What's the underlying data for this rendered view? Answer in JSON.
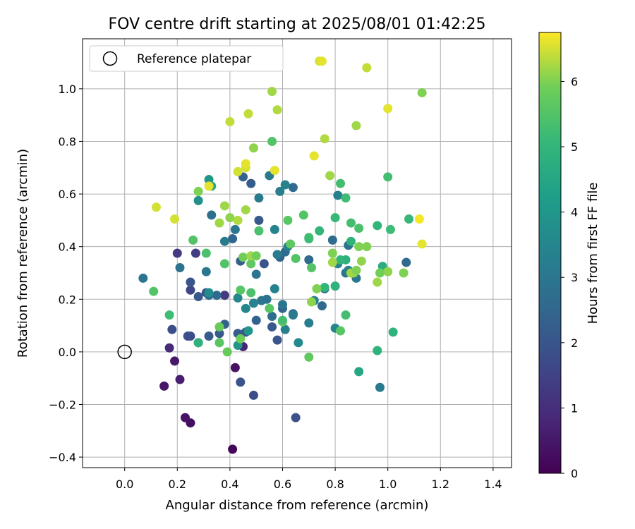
{
  "chart_data": {
    "type": "scatter",
    "title": "FOV centre drift starting at 2025/08/01 01:42:25",
    "xlabel": "Angular distance from reference (arcmin)",
    "ylabel": "Rotation from reference (arcmin)",
    "xlim": [
      -0.16,
      1.47
    ],
    "ylim": [
      -0.44,
      1.19
    ],
    "x_ticks": [
      0.0,
      0.2,
      0.4,
      0.6,
      0.8,
      1.0,
      1.2,
      1.4
    ],
    "x_tick_labels": [
      "0.0",
      "0.2",
      "0.4",
      "0.6",
      "0.8",
      "1.0",
      "1.2",
      "1.4"
    ],
    "y_ticks": [
      -0.4,
      -0.2,
      0.0,
      0.2,
      0.4,
      0.6,
      0.8,
      1.0
    ],
    "y_tick_labels": [
      "−0.4",
      "−0.2",
      "0.0",
      "0.2",
      "0.4",
      "0.6",
      "0.8",
      "1.0"
    ],
    "grid": true,
    "legend": {
      "placement": "top-left",
      "entries": [
        "Reference platepar"
      ]
    },
    "reference_point": {
      "x": 0.0,
      "y": 0.0,
      "label": "Reference platepar"
    },
    "colorbar": {
      "label": "Hours from first FF file",
      "range": [
        0,
        6.75
      ],
      "ticks": [
        0,
        1,
        2,
        3,
        4,
        5,
        6
      ],
      "tick_labels": [
        "0",
        "1",
        "2",
        "3",
        "4",
        "5",
        "6"
      ],
      "colormap": "viridis"
    },
    "points": [
      {
        "x": 0.41,
        "y": -0.37,
        "t": 0.1
      },
      {
        "x": 0.25,
        "y": -0.27,
        "t": 0.3
      },
      {
        "x": 0.23,
        "y": -0.25,
        "t": 0.4
      },
      {
        "x": 0.15,
        "y": -0.13,
        "t": 0.5
      },
      {
        "x": 0.21,
        "y": -0.105,
        "t": 0.6
      },
      {
        "x": 0.19,
        "y": -0.035,
        "t": 0.5
      },
      {
        "x": 0.42,
        "y": -0.06,
        "t": 0.4
      },
      {
        "x": 0.17,
        "y": 0.015,
        "t": 0.9
      },
      {
        "x": 0.45,
        "y": 0.02,
        "t": 0.8
      },
      {
        "x": 0.28,
        "y": 0.035,
        "t": 1.0
      },
      {
        "x": 0.2,
        "y": 0.375,
        "t": 1.3
      },
      {
        "x": 0.27,
        "y": 0.375,
        "t": 1.4
      },
      {
        "x": 0.38,
        "y": 0.215,
        "t": 1.3
      },
      {
        "x": 0.25,
        "y": 0.235,
        "t": 1.6
      },
      {
        "x": 0.18,
        "y": 0.085,
        "t": 1.8
      },
      {
        "x": 0.44,
        "y": -0.115,
        "t": 1.9
      },
      {
        "x": 0.49,
        "y": -0.165,
        "t": 1.8
      },
      {
        "x": 0.65,
        "y": -0.25,
        "t": 1.9
      },
      {
        "x": 0.25,
        "y": 0.265,
        "t": 2.0
      },
      {
        "x": 0.24,
        "y": 0.06,
        "t": 1.9
      },
      {
        "x": 0.25,
        "y": 0.06,
        "t": 1.8
      },
      {
        "x": 0.28,
        "y": 0.21,
        "t": 2.1
      },
      {
        "x": 0.31,
        "y": 0.225,
        "t": 1.9
      },
      {
        "x": 0.32,
        "y": 0.06,
        "t": 2.2
      },
      {
        "x": 0.36,
        "y": 0.07,
        "t": 2.1
      },
      {
        "x": 0.38,
        "y": 0.105,
        "t": 2.4
      },
      {
        "x": 0.43,
        "y": 0.07,
        "t": 2.2
      },
      {
        "x": 0.46,
        "y": 0.075,
        "t": 2.0
      },
      {
        "x": 0.5,
        "y": 0.12,
        "t": 2.4
      },
      {
        "x": 0.51,
        "y": 0.5,
        "t": 2.1
      },
      {
        "x": 0.53,
        "y": 0.335,
        "t": 2.0
      },
      {
        "x": 0.58,
        "y": 0.045,
        "t": 2.0
      },
      {
        "x": 0.56,
        "y": 0.095,
        "t": 2.1
      },
      {
        "x": 0.44,
        "y": 0.345,
        "t": 2.3
      },
      {
        "x": 0.35,
        "y": 0.215,
        "t": 2.6
      },
      {
        "x": 0.32,
        "y": 0.215,
        "t": 2.7
      },
      {
        "x": 0.41,
        "y": 0.43,
        "t": 2.5
      },
      {
        "x": 0.48,
        "y": 0.64,
        "t": 2.2
      },
      {
        "x": 0.45,
        "y": 0.665,
        "t": 2.4
      },
      {
        "x": 0.64,
        "y": 0.625,
        "t": 2.6
      },
      {
        "x": 0.59,
        "y": 0.36,
        "t": 2.4
      },
      {
        "x": 0.61,
        "y": 0.38,
        "t": 2.6
      },
      {
        "x": 0.56,
        "y": 0.135,
        "t": 2.7
      },
      {
        "x": 0.6,
        "y": 0.165,
        "t": 2.5
      },
      {
        "x": 0.64,
        "y": 0.145,
        "t": 2.6
      },
      {
        "x": 0.7,
        "y": 0.35,
        "t": 2.6
      },
      {
        "x": 0.76,
        "y": 0.24,
        "t": 2.5
      },
      {
        "x": 0.75,
        "y": 0.175,
        "t": 2.6
      },
      {
        "x": 1.07,
        "y": 0.34,
        "t": 2.6
      },
      {
        "x": 0.88,
        "y": 0.28,
        "t": 3.0
      },
      {
        "x": 0.85,
        "y": 0.405,
        "t": 2.9
      },
      {
        "x": 0.79,
        "y": 0.425,
        "t": 2.7
      },
      {
        "x": 0.84,
        "y": 0.3,
        "t": 3.0
      },
      {
        "x": 0.97,
        "y": -0.135,
        "t": 3.1
      },
      {
        "x": 0.21,
        "y": 0.32,
        "t": 2.9
      },
      {
        "x": 0.07,
        "y": 0.28,
        "t": 3.0
      },
      {
        "x": 0.31,
        "y": 0.305,
        "t": 3.0
      },
      {
        "x": 0.33,
        "y": 0.52,
        "t": 2.8
      },
      {
        "x": 0.38,
        "y": 0.42,
        "t": 3.1
      },
      {
        "x": 0.42,
        "y": 0.465,
        "t": 3.0
      },
      {
        "x": 0.5,
        "y": 0.295,
        "t": 3.0
      },
      {
        "x": 0.51,
        "y": 0.585,
        "t": 3.1
      },
      {
        "x": 0.55,
        "y": 0.67,
        "t": 3.1
      },
      {
        "x": 0.52,
        "y": 0.195,
        "t": 3.0
      },
      {
        "x": 0.54,
        "y": 0.2,
        "t": 2.9
      },
      {
        "x": 0.6,
        "y": 0.18,
        "t": 3.0
      },
      {
        "x": 0.59,
        "y": 0.61,
        "t": 3.2
      },
      {
        "x": 0.61,
        "y": 0.635,
        "t": 3.4
      },
      {
        "x": 0.62,
        "y": 0.4,
        "t": 3.3
      },
      {
        "x": 0.57,
        "y": 0.465,
        "t": 3.4
      },
      {
        "x": 0.58,
        "y": 0.37,
        "t": 3.2
      },
      {
        "x": 0.43,
        "y": 0.205,
        "t": 3.5
      },
      {
        "x": 0.46,
        "y": 0.165,
        "t": 3.5
      },
      {
        "x": 0.49,
        "y": 0.185,
        "t": 3.4
      },
      {
        "x": 0.57,
        "y": 0.24,
        "t": 3.4
      },
      {
        "x": 0.61,
        "y": 0.085,
        "t": 3.3
      },
      {
        "x": 0.64,
        "y": 0.14,
        "t": 3.1
      },
      {
        "x": 0.7,
        "y": 0.11,
        "t": 3.2
      },
      {
        "x": 0.66,
        "y": 0.035,
        "t": 3.6
      },
      {
        "x": 0.72,
        "y": 0.195,
        "t": 3.3
      },
      {
        "x": 0.8,
        "y": 0.09,
        "t": 3.5
      },
      {
        "x": 0.81,
        "y": 0.595,
        "t": 3.3
      },
      {
        "x": 0.81,
        "y": 0.335,
        "t": 3.3
      },
      {
        "x": 0.85,
        "y": 0.31,
        "t": 3.3
      },
      {
        "x": 0.32,
        "y": 0.225,
        "t": 3.7
      },
      {
        "x": 0.28,
        "y": 0.575,
        "t": 3.8
      },
      {
        "x": 0.32,
        "y": 0.655,
        "t": 4.0
      },
      {
        "x": 0.43,
        "y": 0.025,
        "t": 4.0
      },
      {
        "x": 0.33,
        "y": 0.63,
        "t": 4.6
      },
      {
        "x": 0.47,
        "y": 0.08,
        "t": 4.0
      },
      {
        "x": 0.89,
        "y": -0.075,
        "t": 4.5
      },
      {
        "x": 0.96,
        "y": 0.005,
        "t": 4.9
      },
      {
        "x": 1.02,
        "y": 0.075,
        "t": 4.9
      },
      {
        "x": 0.98,
        "y": 0.325,
        "t": 4.7
      },
      {
        "x": 0.84,
        "y": 0.35,
        "t": 4.8
      },
      {
        "x": 0.8,
        "y": 0.25,
        "t": 4.9
      },
      {
        "x": 0.74,
        "y": 0.46,
        "t": 5.0
      },
      {
        "x": 0.76,
        "y": 0.245,
        "t": 5.0
      },
      {
        "x": 0.82,
        "y": 0.35,
        "t": 5.0
      },
      {
        "x": 0.84,
        "y": 0.585,
        "t": 5.2
      },
      {
        "x": 0.82,
        "y": 0.64,
        "t": 5.3
      },
      {
        "x": 0.86,
        "y": 0.42,
        "t": 4.9
      },
      {
        "x": 0.8,
        "y": 0.51,
        "t": 5.1
      },
      {
        "x": 0.86,
        "y": 0.49,
        "t": 5.3
      },
      {
        "x": 0.89,
        "y": 0.47,
        "t": 5.4
      },
      {
        "x": 0.96,
        "y": 0.48,
        "t": 5.0
      },
      {
        "x": 1.0,
        "y": 0.665,
        "t": 5.3
      },
      {
        "x": 1.01,
        "y": 0.465,
        "t": 5.2
      },
      {
        "x": 1.08,
        "y": 0.505,
        "t": 5.1
      },
      {
        "x": 0.84,
        "y": 0.14,
        "t": 5.3
      },
      {
        "x": 0.82,
        "y": 0.08,
        "t": 5.6
      },
      {
        "x": 0.7,
        "y": 0.435,
        "t": 5.4
      },
      {
        "x": 0.68,
        "y": 0.52,
        "t": 5.5
      },
      {
        "x": 0.7,
        "y": 0.43,
        "t": 5.2
      },
      {
        "x": 0.71,
        "y": 0.32,
        "t": 5.5
      },
      {
        "x": 0.7,
        "y": -0.02,
        "t": 5.7
      },
      {
        "x": 0.62,
        "y": 0.5,
        "t": 5.6
      },
      {
        "x": 0.63,
        "y": 0.41,
        "t": 5.7
      },
      {
        "x": 0.65,
        "y": 0.355,
        "t": 5.5
      },
      {
        "x": 0.6,
        "y": 0.115,
        "t": 5.8
      },
      {
        "x": 0.56,
        "y": 0.8,
        "t": 5.5
      },
      {
        "x": 0.51,
        "y": 0.46,
        "t": 5.4
      },
      {
        "x": 0.48,
        "y": 0.335,
        "t": 5.7
      },
      {
        "x": 0.48,
        "y": 0.225,
        "t": 5.4
      },
      {
        "x": 0.44,
        "y": 0.235,
        "t": 5.6
      },
      {
        "x": 0.55,
        "y": 0.165,
        "t": 5.6
      },
      {
        "x": 0.6,
        "y": 0.12,
        "t": 5.3
      },
      {
        "x": 0.38,
        "y": 0.335,
        "t": 5.5
      },
      {
        "x": 0.36,
        "y": 0.095,
        "t": 5.8
      },
      {
        "x": 0.36,
        "y": 0.035,
        "t": 5.6
      },
      {
        "x": 0.39,
        "y": 0.0,
        "t": 5.8
      },
      {
        "x": 0.44,
        "y": 0.05,
        "t": 5.9
      },
      {
        "x": 0.31,
        "y": 0.375,
        "t": 5.4
      },
      {
        "x": 0.26,
        "y": 0.425,
        "t": 5.5
      },
      {
        "x": 0.17,
        "y": 0.14,
        "t": 5.2
      },
      {
        "x": 0.11,
        "y": 0.23,
        "t": 5.5
      },
      {
        "x": 0.28,
        "y": 0.035,
        "t": 4.9
      },
      {
        "x": 0.28,
        "y": 0.61,
        "t": 6.0
      },
      {
        "x": 0.38,
        "y": 0.555,
        "t": 6.2
      },
      {
        "x": 0.4,
        "y": 0.51,
        "t": 6.1
      },
      {
        "x": 0.43,
        "y": 0.5,
        "t": 6.3
      },
      {
        "x": 0.45,
        "y": 0.36,
        "t": 5.9
      },
      {
        "x": 0.48,
        "y": 0.365,
        "t": 6.2
      },
      {
        "x": 0.5,
        "y": 0.365,
        "t": 5.9
      },
      {
        "x": 0.46,
        "y": 0.54,
        "t": 6.2
      },
      {
        "x": 0.36,
        "y": 0.49,
        "t": 6.2
      },
      {
        "x": 0.49,
        "y": 0.775,
        "t": 6.1
      },
      {
        "x": 0.56,
        "y": 0.99,
        "t": 6.2
      },
      {
        "x": 0.58,
        "y": 0.92,
        "t": 6.3
      },
      {
        "x": 0.47,
        "y": 0.905,
        "t": 6.4
      },
      {
        "x": 0.4,
        "y": 0.875,
        "t": 6.4
      },
      {
        "x": 0.43,
        "y": 0.685,
        "t": 6.5
      },
      {
        "x": 0.46,
        "y": 0.7,
        "t": 6.5
      },
      {
        "x": 0.46,
        "y": 0.715,
        "t": 6.6
      },
      {
        "x": 0.57,
        "y": 0.69,
        "t": 6.6
      },
      {
        "x": 0.72,
        "y": 0.745,
        "t": 6.6
      },
      {
        "x": 0.74,
        "y": 1.105,
        "t": 6.5
      },
      {
        "x": 0.75,
        "y": 1.105,
        "t": 6.6
      },
      {
        "x": 0.76,
        "y": 0.81,
        "t": 6.3
      },
      {
        "x": 0.78,
        "y": 0.67,
        "t": 6.2
      },
      {
        "x": 0.88,
        "y": 0.86,
        "t": 6.2
      },
      {
        "x": 0.92,
        "y": 1.08,
        "t": 6.4
      },
      {
        "x": 1.0,
        "y": 0.925,
        "t": 6.6
      },
      {
        "x": 1.13,
        "y": 0.985,
        "t": 6.0
      },
      {
        "x": 1.12,
        "y": 0.505,
        "t": 6.7
      },
      {
        "x": 1.13,
        "y": 0.41,
        "t": 6.6
      },
      {
        "x": 1.06,
        "y": 0.3,
        "t": 6.0
      },
      {
        "x": 1.0,
        "y": 0.305,
        "t": 6.1
      },
      {
        "x": 0.97,
        "y": 0.3,
        "t": 5.9
      },
      {
        "x": 0.96,
        "y": 0.265,
        "t": 6.2
      },
      {
        "x": 0.92,
        "y": 0.4,
        "t": 6.0
      },
      {
        "x": 0.89,
        "y": 0.4,
        "t": 6.0
      },
      {
        "x": 0.9,
        "y": 0.345,
        "t": 6.1
      },
      {
        "x": 0.87,
        "y": 0.3,
        "t": 6.1
      },
      {
        "x": 0.86,
        "y": 0.3,
        "t": 6.2
      },
      {
        "x": 0.88,
        "y": 0.31,
        "t": 6.0
      },
      {
        "x": 0.79,
        "y": 0.375,
        "t": 6.0
      },
      {
        "x": 0.79,
        "y": 0.34,
        "t": 6.2
      },
      {
        "x": 0.73,
        "y": 0.24,
        "t": 6.0
      },
      {
        "x": 0.71,
        "y": 0.19,
        "t": 6.1
      },
      {
        "x": 0.19,
        "y": 0.505,
        "t": 6.5
      },
      {
        "x": 0.12,
        "y": 0.55,
        "t": 6.5
      },
      {
        "x": 0.32,
        "y": 0.63,
        "t": 6.6
      }
    ]
  }
}
